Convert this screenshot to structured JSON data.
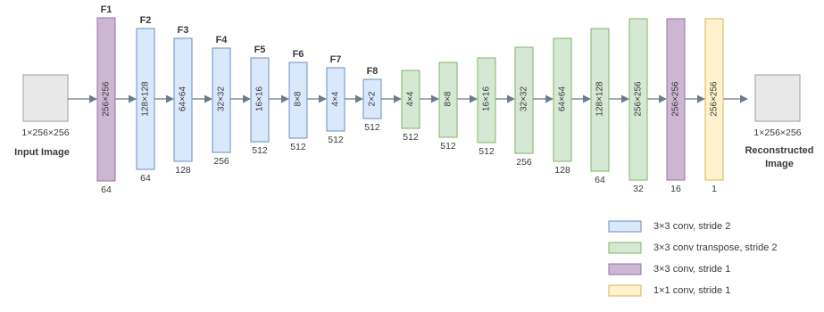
{
  "input": {
    "dims": "1×256×256",
    "label": "Input Image"
  },
  "output": {
    "dims": "1×256×256",
    "label_line1": "Reconstructed",
    "label_line2": "Image"
  },
  "colors": {
    "conv": "#dae8fc",
    "conv_border": "#6c8ebf",
    "transpose": "#d5e8d4",
    "transpose_border": "#82b366",
    "conv_s1": "#cdb6d2",
    "conv_s1_border": "#9673a6",
    "conv1x1": "#fff2cc",
    "conv1x1_border": "#d6b656",
    "image": "#e8e8e8",
    "image_border": "#9e9e9e",
    "arrow": "#6b7b8c"
  },
  "blocks": [
    {
      "kind": "conv_s1",
      "title": "F1",
      "size": "256×256",
      "channels": "64"
    },
    {
      "kind": "conv",
      "title": "F2",
      "size": "128×128",
      "channels": "64"
    },
    {
      "kind": "conv",
      "title": "F3",
      "size": "64×64",
      "channels": "128"
    },
    {
      "kind": "conv",
      "title": "F4",
      "size": "32×32",
      "channels": "256"
    },
    {
      "kind": "conv",
      "title": "F5",
      "size": "16×16",
      "channels": "512"
    },
    {
      "kind": "conv",
      "title": "F6",
      "size": "8×8",
      "channels": "512"
    },
    {
      "kind": "conv",
      "title": "F7",
      "size": "4×4",
      "channels": "512"
    },
    {
      "kind": "conv",
      "title": "F8",
      "size": "2×2",
      "channels": "512"
    },
    {
      "kind": "transpose",
      "title": "",
      "size": "4×4",
      "channels": "512"
    },
    {
      "kind": "transpose",
      "title": "",
      "size": "8×8",
      "channels": "512"
    },
    {
      "kind": "transpose",
      "title": "",
      "size": "16×16",
      "channels": "512"
    },
    {
      "kind": "transpose",
      "title": "",
      "size": "32×32",
      "channels": "256"
    },
    {
      "kind": "transpose",
      "title": "",
      "size": "64×64",
      "channels": "128"
    },
    {
      "kind": "transpose",
      "title": "",
      "size": "128×128",
      "channels": "64"
    },
    {
      "kind": "transpose",
      "title": "",
      "size": "256×256",
      "channels": "32"
    },
    {
      "kind": "conv_s1",
      "title": "",
      "size": "256×256",
      "channels": "16"
    },
    {
      "kind": "conv1x1",
      "title": "",
      "size": "256×256",
      "channels": "1"
    }
  ],
  "legend": [
    {
      "kind": "conv",
      "label": "3×3 conv, stride 2"
    },
    {
      "kind": "transpose",
      "label": "3×3 conv transpose, stride 2"
    },
    {
      "kind": "conv_s1",
      "label": "3×3 conv, stride 1"
    },
    {
      "kind": "conv1x1",
      "label": "1×1 conv, stride 1"
    }
  ]
}
